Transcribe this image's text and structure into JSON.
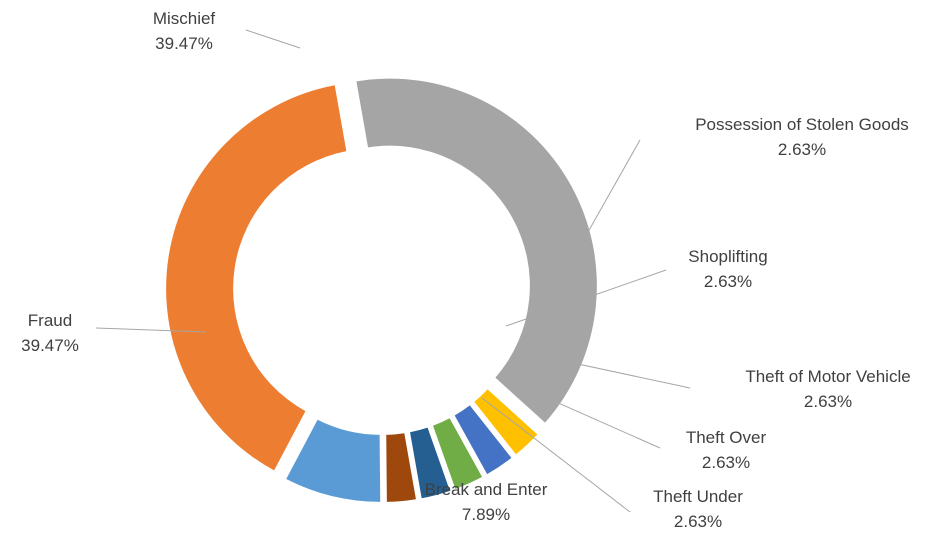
{
  "chart_data": {
    "type": "pie",
    "variant": "donut",
    "title": "",
    "slices": [
      {
        "label": "Mischief",
        "value": 39.47,
        "value_label": "39.47%",
        "color": "#a5a5a5"
      },
      {
        "label": "Possession of Stolen Goods",
        "value": 2.63,
        "value_label": "2.63%",
        "color": "#ffc000"
      },
      {
        "label": "Shoplifting",
        "value": 2.63,
        "value_label": "2.63%",
        "color": "#4472c4"
      },
      {
        "label": "Theft of Motor Vehicle",
        "value": 2.63,
        "value_label": "2.63%",
        "color": "#70ad47"
      },
      {
        "label": "Theft Over",
        "value": 2.63,
        "value_label": "2.63%",
        "color": "#255e91"
      },
      {
        "label": "Theft Under",
        "value": 2.63,
        "value_label": "2.63%",
        "color": "#9e480e"
      },
      {
        "label": "Break and Enter",
        "value": 7.89,
        "value_label": "7.89%",
        "color": "#5b9bd5"
      },
      {
        "label": "Fraud",
        "value": 39.47,
        "value_label": "39.47%",
        "color": "#ed7d31"
      }
    ],
    "legend": "none",
    "data_labels": "outside-with-leader-lines"
  }
}
